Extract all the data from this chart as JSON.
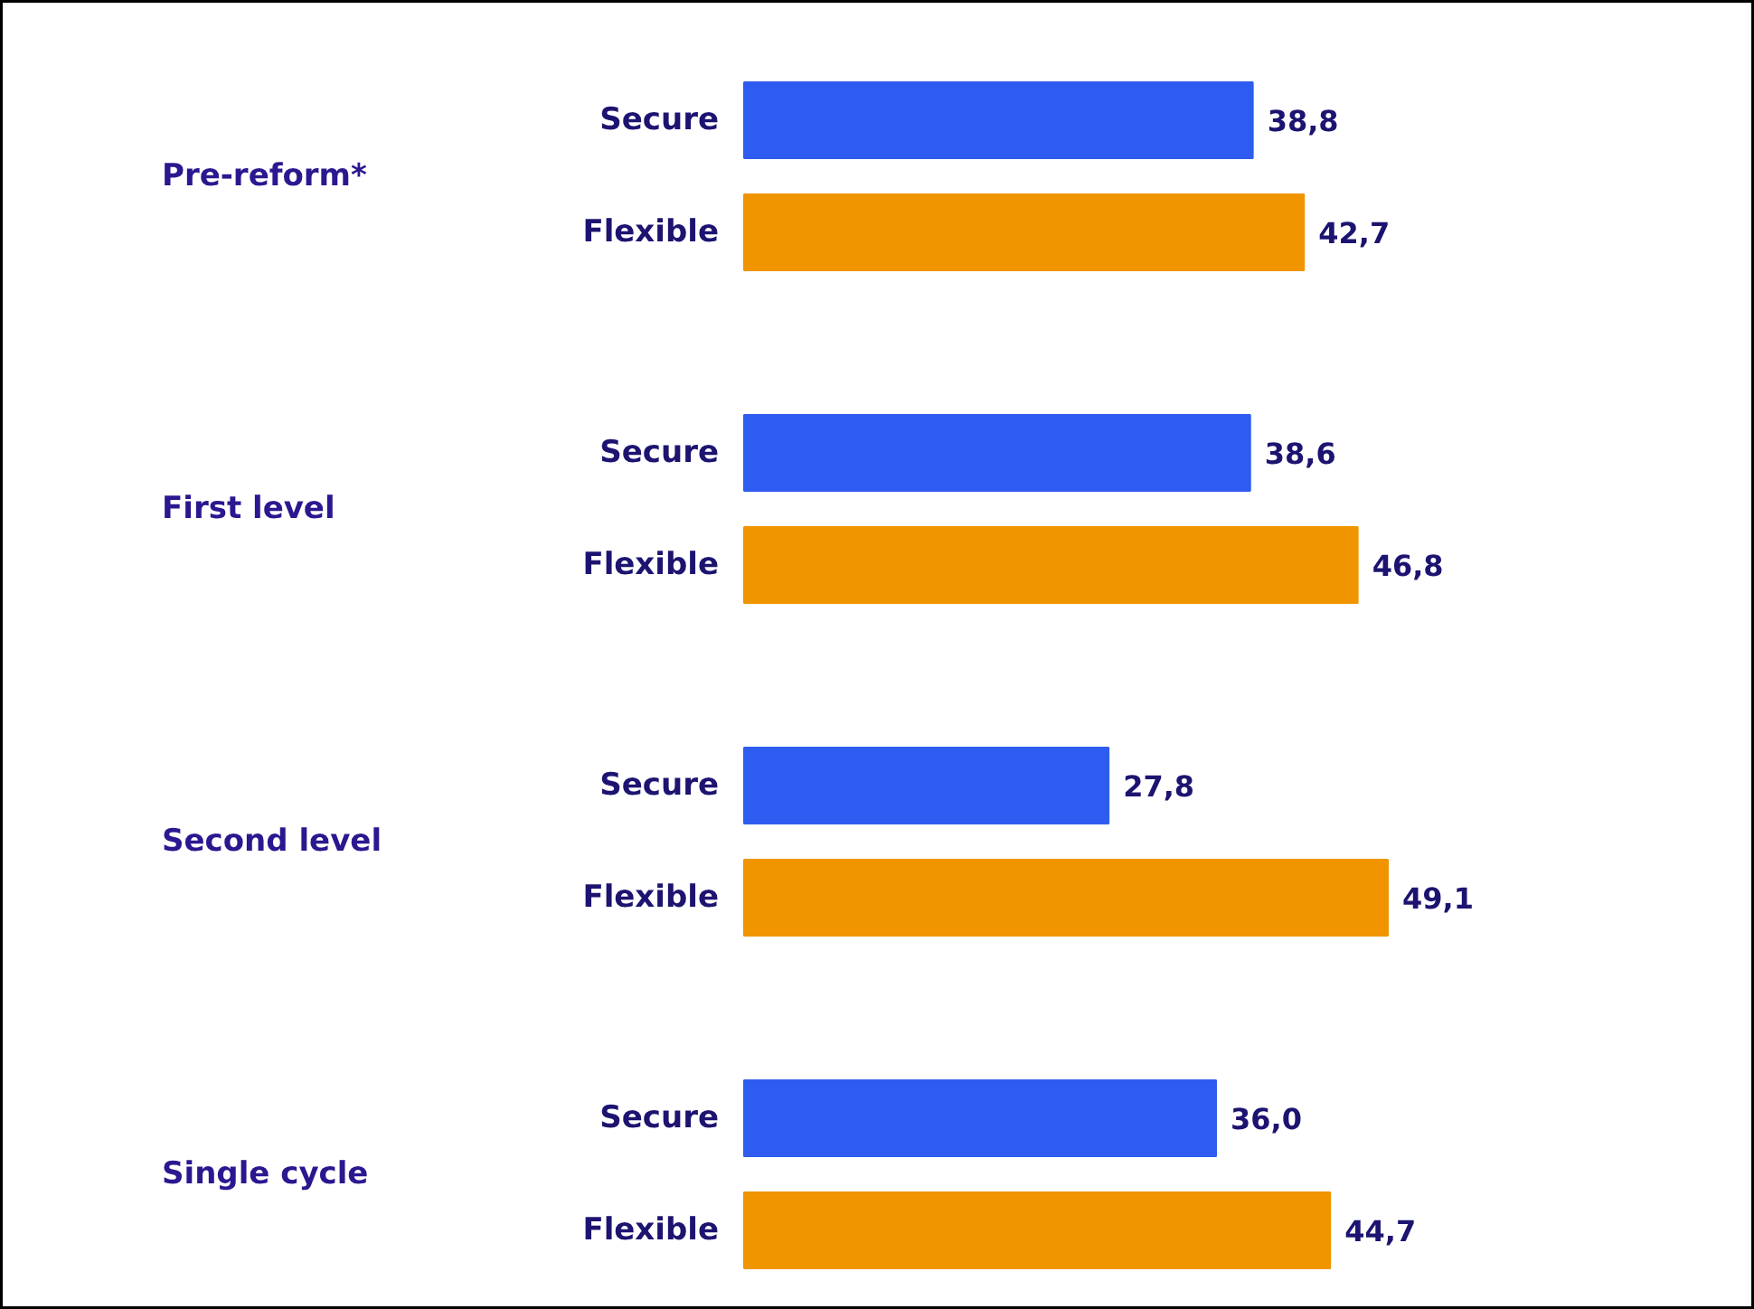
{
  "chart_data": {
    "type": "bar",
    "orientation": "horizontal",
    "categories": [
      "Pre-reform*",
      "First level",
      "Second level",
      "Single cycle"
    ],
    "series": [
      {
        "name": "Secure",
        "color": "#2f5cf0",
        "values": [
          38.8,
          38.6,
          27.8,
          36.0
        ],
        "value_labels": [
          "38,8",
          "38,6",
          "27,8",
          "36,0"
        ]
      },
      {
        "name": "Flexible",
        "color": "#f09400",
        "values": [
          42.7,
          46.8,
          49.1,
          44.7
        ],
        "value_labels": [
          "42,7",
          "46,8",
          "49,1",
          "44,7"
        ]
      }
    ],
    "tick_labels": false,
    "grid": false
  }
}
